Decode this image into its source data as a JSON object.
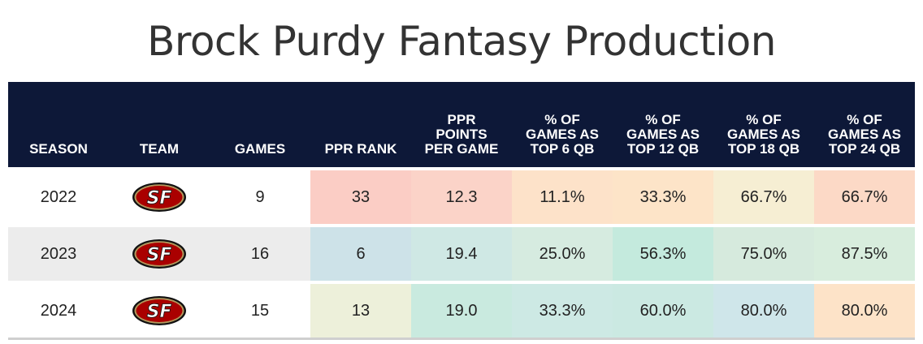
{
  "title": "Brock Purdy Fantasy Production",
  "columns": [
    [
      "SEASON"
    ],
    [
      "TEAM"
    ],
    [
      "GAMES"
    ],
    [
      "PPR RANK"
    ],
    [
      "PPR",
      "POINTS",
      "PER GAME"
    ],
    [
      "% OF",
      "GAMES AS",
      "TOP 6 QB"
    ],
    [
      "% OF",
      "GAMES AS",
      "TOP 12 QB"
    ],
    [
      "% OF",
      "GAMES AS",
      "TOP 18 QB"
    ],
    [
      "% OF",
      "GAMES AS",
      "TOP 24 QB"
    ]
  ],
  "rows": [
    {
      "season": "2022",
      "team_logo": "49ers-logo-icon",
      "games": "9",
      "ppr_rank": "33",
      "ppr_ppg": "12.3",
      "top6": "11.1%",
      "top12": "33.3%",
      "top18": "66.7%",
      "top24": "66.7%"
    },
    {
      "season": "2023",
      "team_logo": "49ers-logo-icon",
      "games": "16",
      "ppr_rank": "6",
      "ppr_ppg": "19.4",
      "top6": "25.0%",
      "top12": "56.3%",
      "top18": "75.0%",
      "top24": "87.5%"
    },
    {
      "season": "2024",
      "team_logo": "49ers-logo-icon",
      "games": "15",
      "ppr_rank": "13",
      "ppr_ppg": "19.0",
      "top6": "33.3%",
      "top12": "60.0%",
      "top18": "80.0%",
      "top24": "80.0%"
    }
  ],
  "cell_colors": [
    [
      "#fbcdc5",
      "#fbd3c8",
      "#fde2c9",
      "#fde4c8",
      "#f6eed3",
      "#fcd9c6"
    ],
    [
      "#cde2e8",
      "#cfe8e4",
      "#d6ebe0",
      "#c4eadd",
      "#d6eadd",
      "#d8eddd"
    ],
    [
      "#edf0da",
      "#c9eadf",
      "#cde9e4",
      "#cbe9e2",
      "#cfe6ea",
      "#fde3c8"
    ]
  ],
  "colors": {
    "header_bg": "#0d1838",
    "logo_red": "#aa0000",
    "logo_gold": "#b3995d"
  }
}
